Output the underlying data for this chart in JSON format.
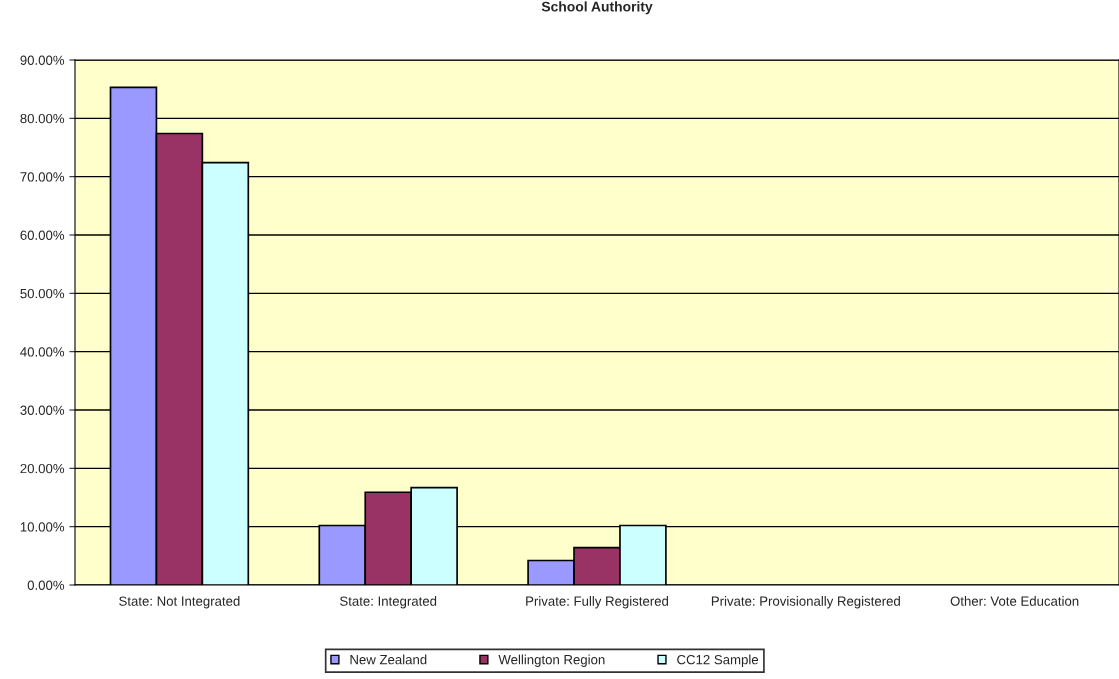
{
  "chart_data": {
    "type": "bar",
    "title": "School Authority",
    "categories": [
      "State: Not Integrated",
      "State: Integrated",
      "Private: Fully Registered",
      "Private: Provisionally Registered",
      "Other: Vote Education"
    ],
    "series": [
      {
        "name": "New Zealand",
        "color": "#9999ff",
        "values": [
          85.3,
          10.2,
          4.2,
          null,
          null
        ]
      },
      {
        "name": "Wellington Region",
        "color": "#993366",
        "values": [
          77.4,
          15.9,
          6.4,
          null,
          null
        ]
      },
      {
        "name": "CC12 Sample",
        "color": "#ccffff",
        "values": [
          72.4,
          16.7,
          10.2,
          null,
          null
        ]
      }
    ],
    "ylim": [
      0,
      90
    ],
    "yticks": [
      {
        "value": 0,
        "label": "0.00%"
      },
      {
        "value": 10,
        "label": "10.00%"
      },
      {
        "value": 20,
        "label": "20.00%"
      },
      {
        "value": 30,
        "label": "30.00%"
      },
      {
        "value": 40,
        "label": "40.00%"
      },
      {
        "value": 50,
        "label": "50.00%"
      },
      {
        "value": 60,
        "label": "60.00%"
      },
      {
        "value": 70,
        "label": "70.00%"
      },
      {
        "value": 80,
        "label": "80.00%"
      },
      {
        "value": 90,
        "label": "90.00%"
      }
    ],
    "grid": "y",
    "legend": "bottom"
  }
}
